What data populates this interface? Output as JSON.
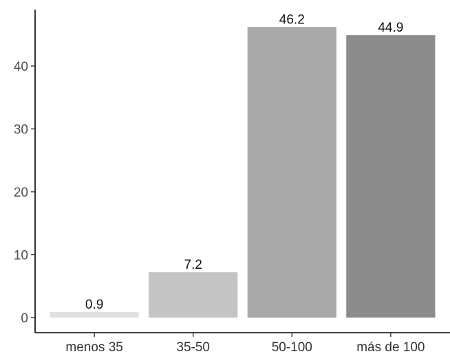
{
  "chart_data": {
    "type": "bar",
    "categories": [
      "menos 35",
      "35-50",
      "50-100",
      "más de 100"
    ],
    "values": [
      0.9,
      7.2,
      46.2,
      44.9
    ],
    "data_labels": [
      "0.9",
      "7.2",
      "46.2",
      "44.9"
    ],
    "bar_colors": [
      "#e0e0e0",
      "#c4c4c4",
      "#a9a9a9",
      "#8c8c8c"
    ],
    "yticks": [
      0,
      10,
      20,
      30,
      40
    ],
    "ylim": [
      0,
      48
    ],
    "grid": false,
    "legend": "none",
    "title": "",
    "xlabel": "",
    "ylabel": ""
  }
}
